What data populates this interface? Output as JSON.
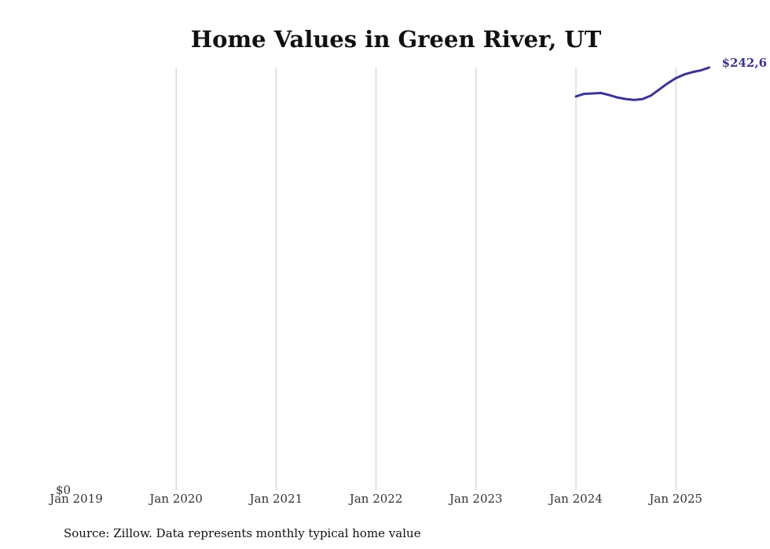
{
  "chart_data": {
    "type": "line",
    "title": "Home Values in Green River, UT",
    "source": "Source: Zillow. Data represents monthly typical home value",
    "xlabel": "",
    "ylabel": "",
    "x_ticks": [
      "Jan 2019",
      "Jan 2020",
      "Jan 2021",
      "Jan 2022",
      "Jan 2023",
      "Jan 2024",
      "Jan 2025"
    ],
    "y_ticks": [
      "$0"
    ],
    "ylim": [
      0,
      242600
    ],
    "xlim": [
      "2019-01",
      "2025-05"
    ],
    "grid": "vertical",
    "line_color": "#3b3591",
    "series": [
      {
        "end_label": "$242,6",
        "points": [
          {
            "x": "2024-01",
            "y": 226000
          },
          {
            "x": "2024-02",
            "y": 227500
          },
          {
            "x": "2024-03",
            "y": 227700
          },
          {
            "x": "2024-04",
            "y": 228000
          },
          {
            "x": "2024-05",
            "y": 226800
          },
          {
            "x": "2024-06",
            "y": 225400
          },
          {
            "x": "2024-07",
            "y": 224500
          },
          {
            "x": "2024-08",
            "y": 224000
          },
          {
            "x": "2024-09",
            "y": 224500
          },
          {
            "x": "2024-10",
            "y": 226500
          },
          {
            "x": "2024-11",
            "y": 230000
          },
          {
            "x": "2024-12",
            "y": 233500
          },
          {
            "x": "2025-01",
            "y": 236500
          },
          {
            "x": "2025-02",
            "y": 238600
          },
          {
            "x": "2025-03",
            "y": 240000
          },
          {
            "x": "2025-04",
            "y": 241000
          },
          {
            "x": "2025-05",
            "y": 242600
          }
        ]
      }
    ]
  }
}
